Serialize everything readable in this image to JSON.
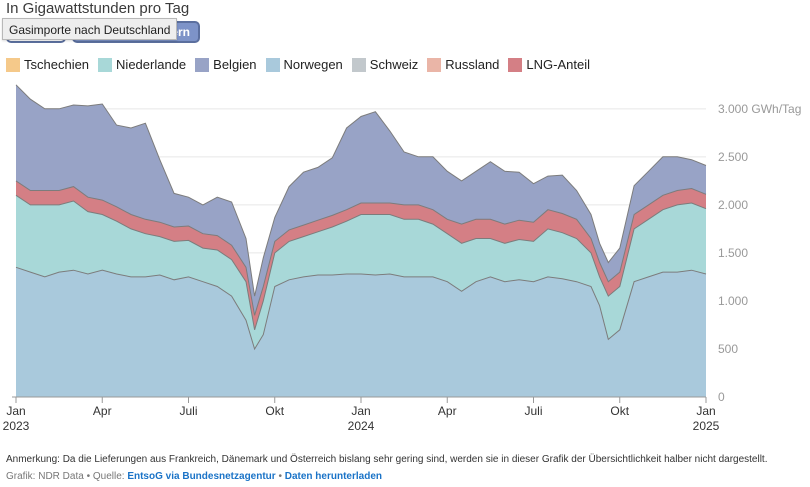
{
  "header": {
    "subtitle": "In Gigawattstunden pro Tag",
    "toggle_label": "lern",
    "tooltip": "Gasimporte nach Deutschland"
  },
  "legend": [
    {
      "label": "Tschechien",
      "color": "#f5c98a"
    },
    {
      "label": "Niederlande",
      "color": "#a8d8d8"
    },
    {
      "label": "Belgien",
      "color": "#98a3c6"
    },
    {
      "label": "Norwegen",
      "color": "#a9c9dc"
    },
    {
      "label": "Schweiz",
      "color": "#c2c8cc"
    },
    {
      "label": "Russland",
      "color": "#eab5a7"
    },
    {
      "label": "LNG-Anteil",
      "color": "#d47f85"
    }
  ],
  "chart_data": {
    "type": "area",
    "stacked": true,
    "x_unit": "months since Jan 2023",
    "xlim": [
      0,
      24
    ],
    "ylim": [
      0,
      3300
    ],
    "y_ticks": [
      {
        "value": 0,
        "label": "0"
      },
      {
        "value": 500,
        "label": "500"
      },
      {
        "value": 1000,
        "label": "1.000"
      },
      {
        "value": 1500,
        "label": "1.500"
      },
      {
        "value": 2000,
        "label": "2.000"
      },
      {
        "value": 2500,
        "label": "2.500"
      },
      {
        "value": 3000,
        "label": "3.000 GWh/Tag"
      }
    ],
    "x_ticks": [
      {
        "value": 0,
        "label": "Jan",
        "year": "2023"
      },
      {
        "value": 3,
        "label": "Apr",
        "year": ""
      },
      {
        "value": 6,
        "label": "Juli",
        "year": ""
      },
      {
        "value": 9,
        "label": "Okt",
        "year": ""
      },
      {
        "value": 12,
        "label": "Jan",
        "year": "2024"
      },
      {
        "value": 15,
        "label": "Apr",
        "year": ""
      },
      {
        "value": 18,
        "label": "Juli",
        "year": ""
      },
      {
        "value": 21,
        "label": "Okt",
        "year": ""
      },
      {
        "value": 24,
        "label": "Jan",
        "year": "2025"
      }
    ],
    "grid": true,
    "x": [
      0,
      0.5,
      1,
      1.5,
      2,
      2.5,
      3,
      3.5,
      4,
      4.5,
      5,
      5.5,
      6,
      6.5,
      7,
      7.5,
      8,
      8.3,
      8.6,
      9,
      9.5,
      10,
      10.5,
      11,
      11.5,
      12,
      12.5,
      13,
      13.5,
      14,
      14.5,
      15,
      15.5,
      16,
      16.5,
      17,
      17.5,
      18,
      18.5,
      19,
      19.5,
      20,
      20.3,
      20.6,
      21,
      21.5,
      22,
      22.5,
      23,
      23.5,
      24
    ],
    "series": [
      {
        "name": "Norwegen",
        "color": "#a9c9dc",
        "values": [
          1350,
          1300,
          1250,
          1300,
          1320,
          1280,
          1320,
          1280,
          1250,
          1250,
          1270,
          1220,
          1250,
          1200,
          1150,
          1050,
          800,
          500,
          650,
          1150,
          1220,
          1250,
          1270,
          1270,
          1280,
          1280,
          1270,
          1280,
          1250,
          1250,
          1250,
          1200,
          1100,
          1200,
          1250,
          1200,
          1220,
          1200,
          1250,
          1230,
          1200,
          1150,
          950,
          600,
          700,
          1200,
          1250,
          1300,
          1300,
          1320,
          1280
        ]
      },
      {
        "name": "Niederlande",
        "color": "#a8d8d8",
        "values": [
          750,
          700,
          750,
          700,
          720,
          650,
          580,
          550,
          500,
          450,
          400,
          400,
          380,
          350,
          380,
          380,
          400,
          200,
          350,
          350,
          400,
          420,
          450,
          500,
          550,
          620,
          630,
          620,
          600,
          600,
          550,
          500,
          500,
          450,
          400,
          400,
          420,
          420,
          500,
          480,
          450,
          350,
          300,
          450,
          450,
          550,
          600,
          650,
          700,
          700,
          680
        ]
      },
      {
        "name": "LNG-Anteil",
        "color": "#d47f85",
        "values": [
          150,
          150,
          150,
          150,
          150,
          150,
          150,
          150,
          150,
          150,
          150,
          150,
          150,
          150,
          150,
          150,
          150,
          150,
          150,
          120,
          120,
          120,
          120,
          120,
          120,
          120,
          120,
          120,
          150,
          150,
          150,
          150,
          200,
          200,
          200,
          200,
          200,
          200,
          200,
          200,
          200,
          150,
          150,
          150,
          150,
          150,
          150,
          150,
          150,
          150,
          150
        ]
      },
      {
        "name": "Belgien",
        "color": "#98a3c6",
        "values": [
          1000,
          950,
          850,
          850,
          850,
          950,
          1000,
          850,
          900,
          1000,
          650,
          350,
          300,
          300,
          400,
          450,
          300,
          200,
          300,
          250,
          450,
          550,
          550,
          600,
          850,
          900,
          950,
          750,
          550,
          500,
          550,
          500,
          450,
          500,
          600,
          550,
          500,
          400,
          350,
          400,
          300,
          250,
          200,
          200,
          250,
          300,
          350,
          400,
          350,
          300,
          300
        ]
      }
    ]
  },
  "footnote": "Anmerkung: Da die Lieferungen aus Frankreich, Dänemark und Österreich bislang sehr gering sind, werden sie in dieser Grafik der Übersichtlichkeit halber nicht dargestellt.",
  "source": {
    "prefix": "Grafik: NDR Data • Quelle: ",
    "link1": "EntsoG via Bundesnetzagentur",
    "separator": " • ",
    "link2": "Daten herunterladen"
  }
}
